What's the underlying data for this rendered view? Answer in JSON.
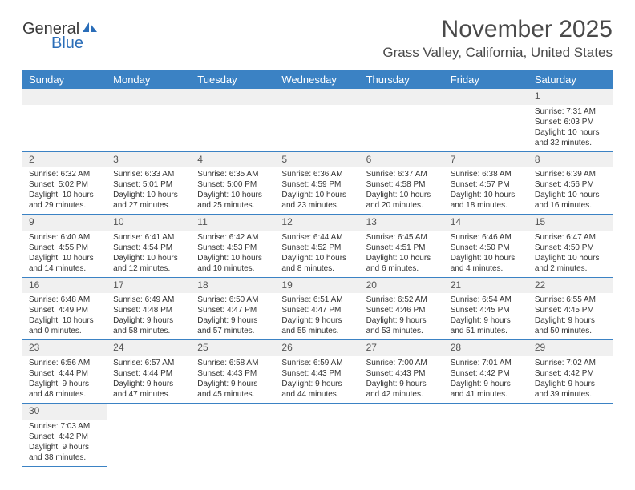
{
  "logo": {
    "text1": "General",
    "text2": "Blue"
  },
  "title": "November 2025",
  "location": "Grass Valley, California, United States",
  "colors": {
    "header_bg": "#3b82c4",
    "header_fg": "#ffffff",
    "daynum_bg": "#f0f0f0",
    "border": "#3b82c4",
    "text": "#333333",
    "title_color": "#4a4a4a"
  },
  "fonts": {
    "title_size": 30,
    "location_size": 17,
    "header_size": 13,
    "daynum_size": 12,
    "cell_size": 10
  },
  "weekdays": [
    "Sunday",
    "Monday",
    "Tuesday",
    "Wednesday",
    "Thursday",
    "Friday",
    "Saturday"
  ],
  "weeks": [
    [
      null,
      null,
      null,
      null,
      null,
      null,
      {
        "n": "1",
        "sr": "Sunrise: 7:31 AM",
        "ss": "Sunset: 6:03 PM",
        "dl": "Daylight: 10 hours and 32 minutes."
      }
    ],
    [
      {
        "n": "2",
        "sr": "Sunrise: 6:32 AM",
        "ss": "Sunset: 5:02 PM",
        "dl": "Daylight: 10 hours and 29 minutes."
      },
      {
        "n": "3",
        "sr": "Sunrise: 6:33 AM",
        "ss": "Sunset: 5:01 PM",
        "dl": "Daylight: 10 hours and 27 minutes."
      },
      {
        "n": "4",
        "sr": "Sunrise: 6:35 AM",
        "ss": "Sunset: 5:00 PM",
        "dl": "Daylight: 10 hours and 25 minutes."
      },
      {
        "n": "5",
        "sr": "Sunrise: 6:36 AM",
        "ss": "Sunset: 4:59 PM",
        "dl": "Daylight: 10 hours and 23 minutes."
      },
      {
        "n": "6",
        "sr": "Sunrise: 6:37 AM",
        "ss": "Sunset: 4:58 PM",
        "dl": "Daylight: 10 hours and 20 minutes."
      },
      {
        "n": "7",
        "sr": "Sunrise: 6:38 AM",
        "ss": "Sunset: 4:57 PM",
        "dl": "Daylight: 10 hours and 18 minutes."
      },
      {
        "n": "8",
        "sr": "Sunrise: 6:39 AM",
        "ss": "Sunset: 4:56 PM",
        "dl": "Daylight: 10 hours and 16 minutes."
      }
    ],
    [
      {
        "n": "9",
        "sr": "Sunrise: 6:40 AM",
        "ss": "Sunset: 4:55 PM",
        "dl": "Daylight: 10 hours and 14 minutes."
      },
      {
        "n": "10",
        "sr": "Sunrise: 6:41 AM",
        "ss": "Sunset: 4:54 PM",
        "dl": "Daylight: 10 hours and 12 minutes."
      },
      {
        "n": "11",
        "sr": "Sunrise: 6:42 AM",
        "ss": "Sunset: 4:53 PM",
        "dl": "Daylight: 10 hours and 10 minutes."
      },
      {
        "n": "12",
        "sr": "Sunrise: 6:44 AM",
        "ss": "Sunset: 4:52 PM",
        "dl": "Daylight: 10 hours and 8 minutes."
      },
      {
        "n": "13",
        "sr": "Sunrise: 6:45 AM",
        "ss": "Sunset: 4:51 PM",
        "dl": "Daylight: 10 hours and 6 minutes."
      },
      {
        "n": "14",
        "sr": "Sunrise: 6:46 AM",
        "ss": "Sunset: 4:50 PM",
        "dl": "Daylight: 10 hours and 4 minutes."
      },
      {
        "n": "15",
        "sr": "Sunrise: 6:47 AM",
        "ss": "Sunset: 4:50 PM",
        "dl": "Daylight: 10 hours and 2 minutes."
      }
    ],
    [
      {
        "n": "16",
        "sr": "Sunrise: 6:48 AM",
        "ss": "Sunset: 4:49 PM",
        "dl": "Daylight: 10 hours and 0 minutes."
      },
      {
        "n": "17",
        "sr": "Sunrise: 6:49 AM",
        "ss": "Sunset: 4:48 PM",
        "dl": "Daylight: 9 hours and 58 minutes."
      },
      {
        "n": "18",
        "sr": "Sunrise: 6:50 AM",
        "ss": "Sunset: 4:47 PM",
        "dl": "Daylight: 9 hours and 57 minutes."
      },
      {
        "n": "19",
        "sr": "Sunrise: 6:51 AM",
        "ss": "Sunset: 4:47 PM",
        "dl": "Daylight: 9 hours and 55 minutes."
      },
      {
        "n": "20",
        "sr": "Sunrise: 6:52 AM",
        "ss": "Sunset: 4:46 PM",
        "dl": "Daylight: 9 hours and 53 minutes."
      },
      {
        "n": "21",
        "sr": "Sunrise: 6:54 AM",
        "ss": "Sunset: 4:45 PM",
        "dl": "Daylight: 9 hours and 51 minutes."
      },
      {
        "n": "22",
        "sr": "Sunrise: 6:55 AM",
        "ss": "Sunset: 4:45 PM",
        "dl": "Daylight: 9 hours and 50 minutes."
      }
    ],
    [
      {
        "n": "23",
        "sr": "Sunrise: 6:56 AM",
        "ss": "Sunset: 4:44 PM",
        "dl": "Daylight: 9 hours and 48 minutes."
      },
      {
        "n": "24",
        "sr": "Sunrise: 6:57 AM",
        "ss": "Sunset: 4:44 PM",
        "dl": "Daylight: 9 hours and 47 minutes."
      },
      {
        "n": "25",
        "sr": "Sunrise: 6:58 AM",
        "ss": "Sunset: 4:43 PM",
        "dl": "Daylight: 9 hours and 45 minutes."
      },
      {
        "n": "26",
        "sr": "Sunrise: 6:59 AM",
        "ss": "Sunset: 4:43 PM",
        "dl": "Daylight: 9 hours and 44 minutes."
      },
      {
        "n": "27",
        "sr": "Sunrise: 7:00 AM",
        "ss": "Sunset: 4:43 PM",
        "dl": "Daylight: 9 hours and 42 minutes."
      },
      {
        "n": "28",
        "sr": "Sunrise: 7:01 AM",
        "ss": "Sunset: 4:42 PM",
        "dl": "Daylight: 9 hours and 41 minutes."
      },
      {
        "n": "29",
        "sr": "Sunrise: 7:02 AM",
        "ss": "Sunset: 4:42 PM",
        "dl": "Daylight: 9 hours and 39 minutes."
      }
    ],
    [
      {
        "n": "30",
        "sr": "Sunrise: 7:03 AM",
        "ss": "Sunset: 4:42 PM",
        "dl": "Daylight: 9 hours and 38 minutes."
      },
      null,
      null,
      null,
      null,
      null,
      null
    ]
  ]
}
